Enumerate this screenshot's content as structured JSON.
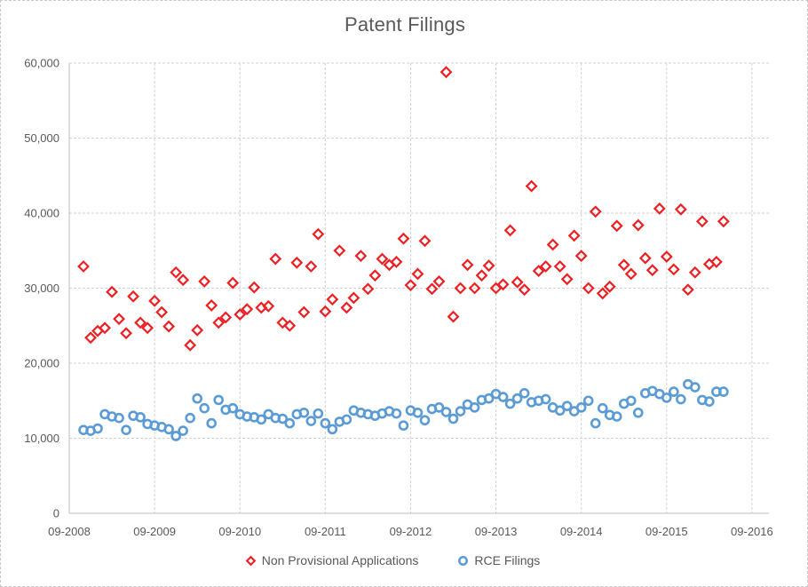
{
  "chart": {
    "title": "Patent Filings"
  },
  "legend": {
    "item1": "Non Provisional Applications",
    "item2": "RCE Filings"
  },
  "colors": {
    "non_provisional": "#ed2024",
    "rce": "#5b9bd5",
    "grid": "#d2d2d2",
    "axis": "#bfbfbf",
    "text": "#595959"
  },
  "chart_data": {
    "type": "scatter",
    "title": "Patent Filings",
    "grid": true,
    "legend_position": "bottom",
    "x_axis": {
      "tick_labels": [
        "09-2008",
        "09-2009",
        "09-2010",
        "09-2011",
        "09-2012",
        "09-2013",
        "09-2014",
        "09-2015",
        "09-2016"
      ],
      "months_per_tick": 12,
      "data_start_month": "11-2008",
      "data_start_offset_months": 2
    },
    "y_axis": {
      "min": 0,
      "max": 60000,
      "step": 10000,
      "tick_labels": [
        "0",
        "10,000",
        "20,000",
        "30,000",
        "40,000",
        "50,000",
        "60,000"
      ]
    },
    "series": [
      {
        "name": "Non Provisional Applications",
        "marker": "diamond",
        "color": "#ed2024",
        "values": [
          32900,
          23400,
          24300,
          24700,
          29500,
          25900,
          24000,
          28900,
          25400,
          24700,
          28300,
          26800,
          24900,
          32100,
          31100,
          22400,
          24400,
          30900,
          27700,
          25400,
          26100,
          30700,
          26500,
          27200,
          30100,
          27400,
          27600,
          33900,
          25400,
          25000,
          33400,
          26800,
          32900,
          37200,
          26900,
          28500,
          35000,
          27400,
          28700,
          34300,
          29900,
          31700,
          33900,
          33100,
          33500,
          36600,
          30400,
          31900,
          36300,
          29900,
          30900,
          58800,
          26200,
          30000,
          33100,
          30000,
          31700,
          33000,
          30000,
          30500,
          37700,
          30800,
          29800,
          43600,
          32300,
          32900,
          35800,
          32900,
          31200,
          37000,
          34300,
          30000,
          40200,
          29300,
          30200,
          38300,
          33100,
          31900,
          38400,
          34000,
          32400,
          40600,
          34200,
          32500,
          40500,
          29800,
          32100,
          38900,
          33200,
          33500,
          38900
        ]
      },
      {
        "name": "RCE Filings",
        "marker": "circle",
        "color": "#5b9bd5",
        "values": [
          11100,
          11000,
          11300,
          13200,
          12900,
          12700,
          11100,
          13000,
          12800,
          11900,
          11700,
          11500,
          11200,
          10300,
          11000,
          12700,
          15300,
          14000,
          12000,
          15100,
          13800,
          14000,
          13200,
          12900,
          12800,
          12500,
          13200,
          12700,
          12600,
          12000,
          13200,
          13400,
          12300,
          13300,
          12000,
          11200,
          12200,
          12500,
          13700,
          13400,
          13200,
          13000,
          13300,
          13600,
          13300,
          11700,
          13700,
          13400,
          12400,
          13900,
          14100,
          13500,
          12600,
          13600,
          14500,
          14100,
          15100,
          15300,
          15900,
          15500,
          14600,
          15300,
          16000,
          14800,
          15000,
          15200,
          14100,
          13700,
          14300,
          13600,
          14100,
          15000,
          12000,
          14000,
          13100,
          12900,
          14600,
          15000,
          13400,
          16000,
          16300,
          15900,
          15400,
          16200,
          15200,
          17200,
          16800,
          15100,
          14900,
          16200,
          16200
        ]
      }
    ]
  }
}
